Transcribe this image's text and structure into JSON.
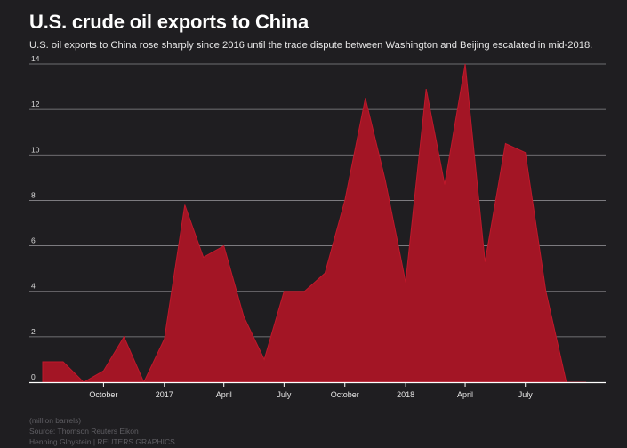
{
  "header": {
    "title": "U.S. crude oil exports to China",
    "subtitle": "U.S. oil exports to China rose sharply since 2016 until the trade dispute between Washington and Beijing escalated in mid-2018."
  },
  "footer": {
    "units": "(million barrels)",
    "source": "Source: Thomson Reuters Eikon",
    "credit": "Henning Gloystein  |  REUTERS GRAPHICS"
  },
  "colors": {
    "background": "#1f1e21",
    "area_fill": "#a31525",
    "area_stroke": "#c0182b",
    "grid": "#8a898d",
    "text": "#ffffff",
    "muted": "#5f5e63"
  },
  "chart_data": {
    "type": "area",
    "title": "U.S. crude oil exports to China",
    "xlabel": "",
    "ylabel": "",
    "units": "million barrels",
    "ylim": [
      0,
      14
    ],
    "yticks": [
      0,
      2,
      4,
      6,
      8,
      10,
      12,
      14
    ],
    "grid": true,
    "xlim": [
      "2016-07-15",
      "2018-10-31"
    ],
    "x_ticks": [
      {
        "label": "October",
        "date": "2016-10-15"
      },
      {
        "label": "2017",
        "date": "2017-01-15"
      },
      {
        "label": "April",
        "date": "2017-04-15"
      },
      {
        "label": "July",
        "date": "2017-07-15"
      },
      {
        "label": "October",
        "date": "2017-10-15"
      },
      {
        "label": "2018",
        "date": "2018-01-15"
      },
      {
        "label": "April",
        "date": "2018-04-15"
      },
      {
        "label": "July",
        "date": "2018-07-15"
      }
    ],
    "series": [
      {
        "x": [
          "2016-07-15",
          "2016-08-15",
          "2016-09-15",
          "2016-10-15",
          "2016-11-15",
          "2016-12-15",
          "2017-01-15",
          "2017-02-15",
          "2017-03-15",
          "2017-04-15",
          "2017-05-15",
          "2017-06-15",
          "2017-07-15",
          "2017-08-15",
          "2017-09-15",
          "2017-10-15",
          "2017-11-15",
          "2017-12-15",
          "2018-01-15",
          "2018-02-15",
          "2018-03-15",
          "2018-04-15",
          "2018-05-15",
          "2018-06-15",
          "2018-07-15",
          "2018-08-15",
          "2018-09-15",
          "2018-10-15"
        ],
        "values": [
          0.9,
          0.9,
          0.0,
          0.5,
          2.0,
          0.0,
          1.9,
          7.8,
          5.5,
          6.0,
          2.9,
          1.0,
          4.0,
          4.0,
          4.8,
          8.0,
          12.5,
          8.9,
          4.4,
          12.9,
          8.7,
          14.0,
          5.3,
          10.5,
          10.1,
          4.0,
          0.0,
          0.0
        ]
      }
    ]
  }
}
